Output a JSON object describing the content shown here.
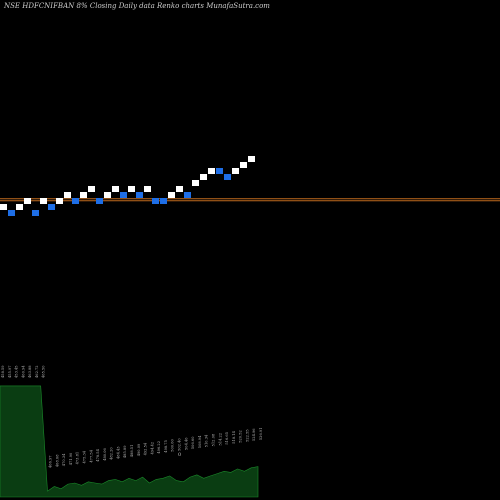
{
  "header": {
    "symbol": "NSE HDFCNIFBAN",
    "pct": "8%",
    "caption": "Closing Daily data  Renko  charts MunafaSutra.com"
  },
  "colors": {
    "background": "#000000",
    "up_brick": "#ffffff",
    "down_brick": "#1e6ee6",
    "reference_line": "#c06a1e",
    "volume_fill": "#0a3d12",
    "volume_line": "#1a8a2a",
    "label": "#bbbbbb"
  },
  "chart_data": {
    "type": "renko",
    "brick_size_pct": 8,
    "bricks": [
      {
        "dir": "up",
        "level": 0
      },
      {
        "dir": "down",
        "level": -1
      },
      {
        "dir": "up",
        "level": 0
      },
      {
        "dir": "up",
        "level": 1
      },
      {
        "dir": "down",
        "level": -1
      },
      {
        "dir": "up",
        "level": 1
      },
      {
        "dir": "down",
        "level": 0
      },
      {
        "dir": "up",
        "level": 1
      },
      {
        "dir": "up",
        "level": 2
      },
      {
        "dir": "down",
        "level": 1
      },
      {
        "dir": "up",
        "level": 2
      },
      {
        "dir": "up",
        "level": 3
      },
      {
        "dir": "down",
        "level": 1
      },
      {
        "dir": "up",
        "level": 2
      },
      {
        "dir": "up",
        "level": 3
      },
      {
        "dir": "down",
        "level": 2
      },
      {
        "dir": "up",
        "level": 3
      },
      {
        "dir": "down",
        "level": 2
      },
      {
        "dir": "up",
        "level": 3
      },
      {
        "dir": "down",
        "level": 1
      },
      {
        "dir": "down",
        "level": 1
      },
      {
        "dir": "up",
        "level": 2
      },
      {
        "dir": "up",
        "level": 3
      },
      {
        "dir": "down",
        "level": 2
      },
      {
        "dir": "up",
        "level": 4
      },
      {
        "dir": "up",
        "level": 5
      },
      {
        "dir": "up",
        "level": 6
      },
      {
        "dir": "down",
        "level": 6
      },
      {
        "dir": "down",
        "level": 5
      },
      {
        "dir": "up",
        "level": 6
      },
      {
        "dir": "up",
        "level": 7
      },
      {
        "dir": "up",
        "level": 8
      }
    ],
    "reference_lines": [
      {
        "name": "upper",
        "level": 1.55
      },
      {
        "name": "lower",
        "level": 1.2
      }
    ],
    "price_labels": [
      "458.59",
      "455.97",
      "453.45",
      "460.94",
      "463.88",
      "462.72",
      "465.50",
      "466.97",
      "468.68",
      "470.34",
      "471.90",
      "473.81",
      "475.34",
      "477.54",
      "478.54",
      "480.06",
      "482.20",
      "484.43",
      "485.89",
      "488.51",
      "490.09",
      "492.54",
      "494.42",
      "496.22",
      "498.75",
      "500.60",
      "502.40",
      "504.46",
      "506.60",
      "508.94",
      "510.34",
      "512.08",
      "514.22",
      "516.65",
      "518.14",
      "520.52",
      "522.55",
      "524.96",
      "526.91"
    ],
    "volume": [
      95,
      95,
      95,
      95,
      95,
      95,
      95,
      5,
      9,
      7,
      11,
      12,
      10,
      13,
      12,
      11,
      14,
      15,
      13,
      16,
      14,
      17,
      12,
      15,
      16,
      18,
      14,
      13,
      17,
      19,
      16,
      18,
      20,
      22,
      21,
      24,
      22,
      25,
      26
    ],
    "volume_note_symbol": "0"
  }
}
